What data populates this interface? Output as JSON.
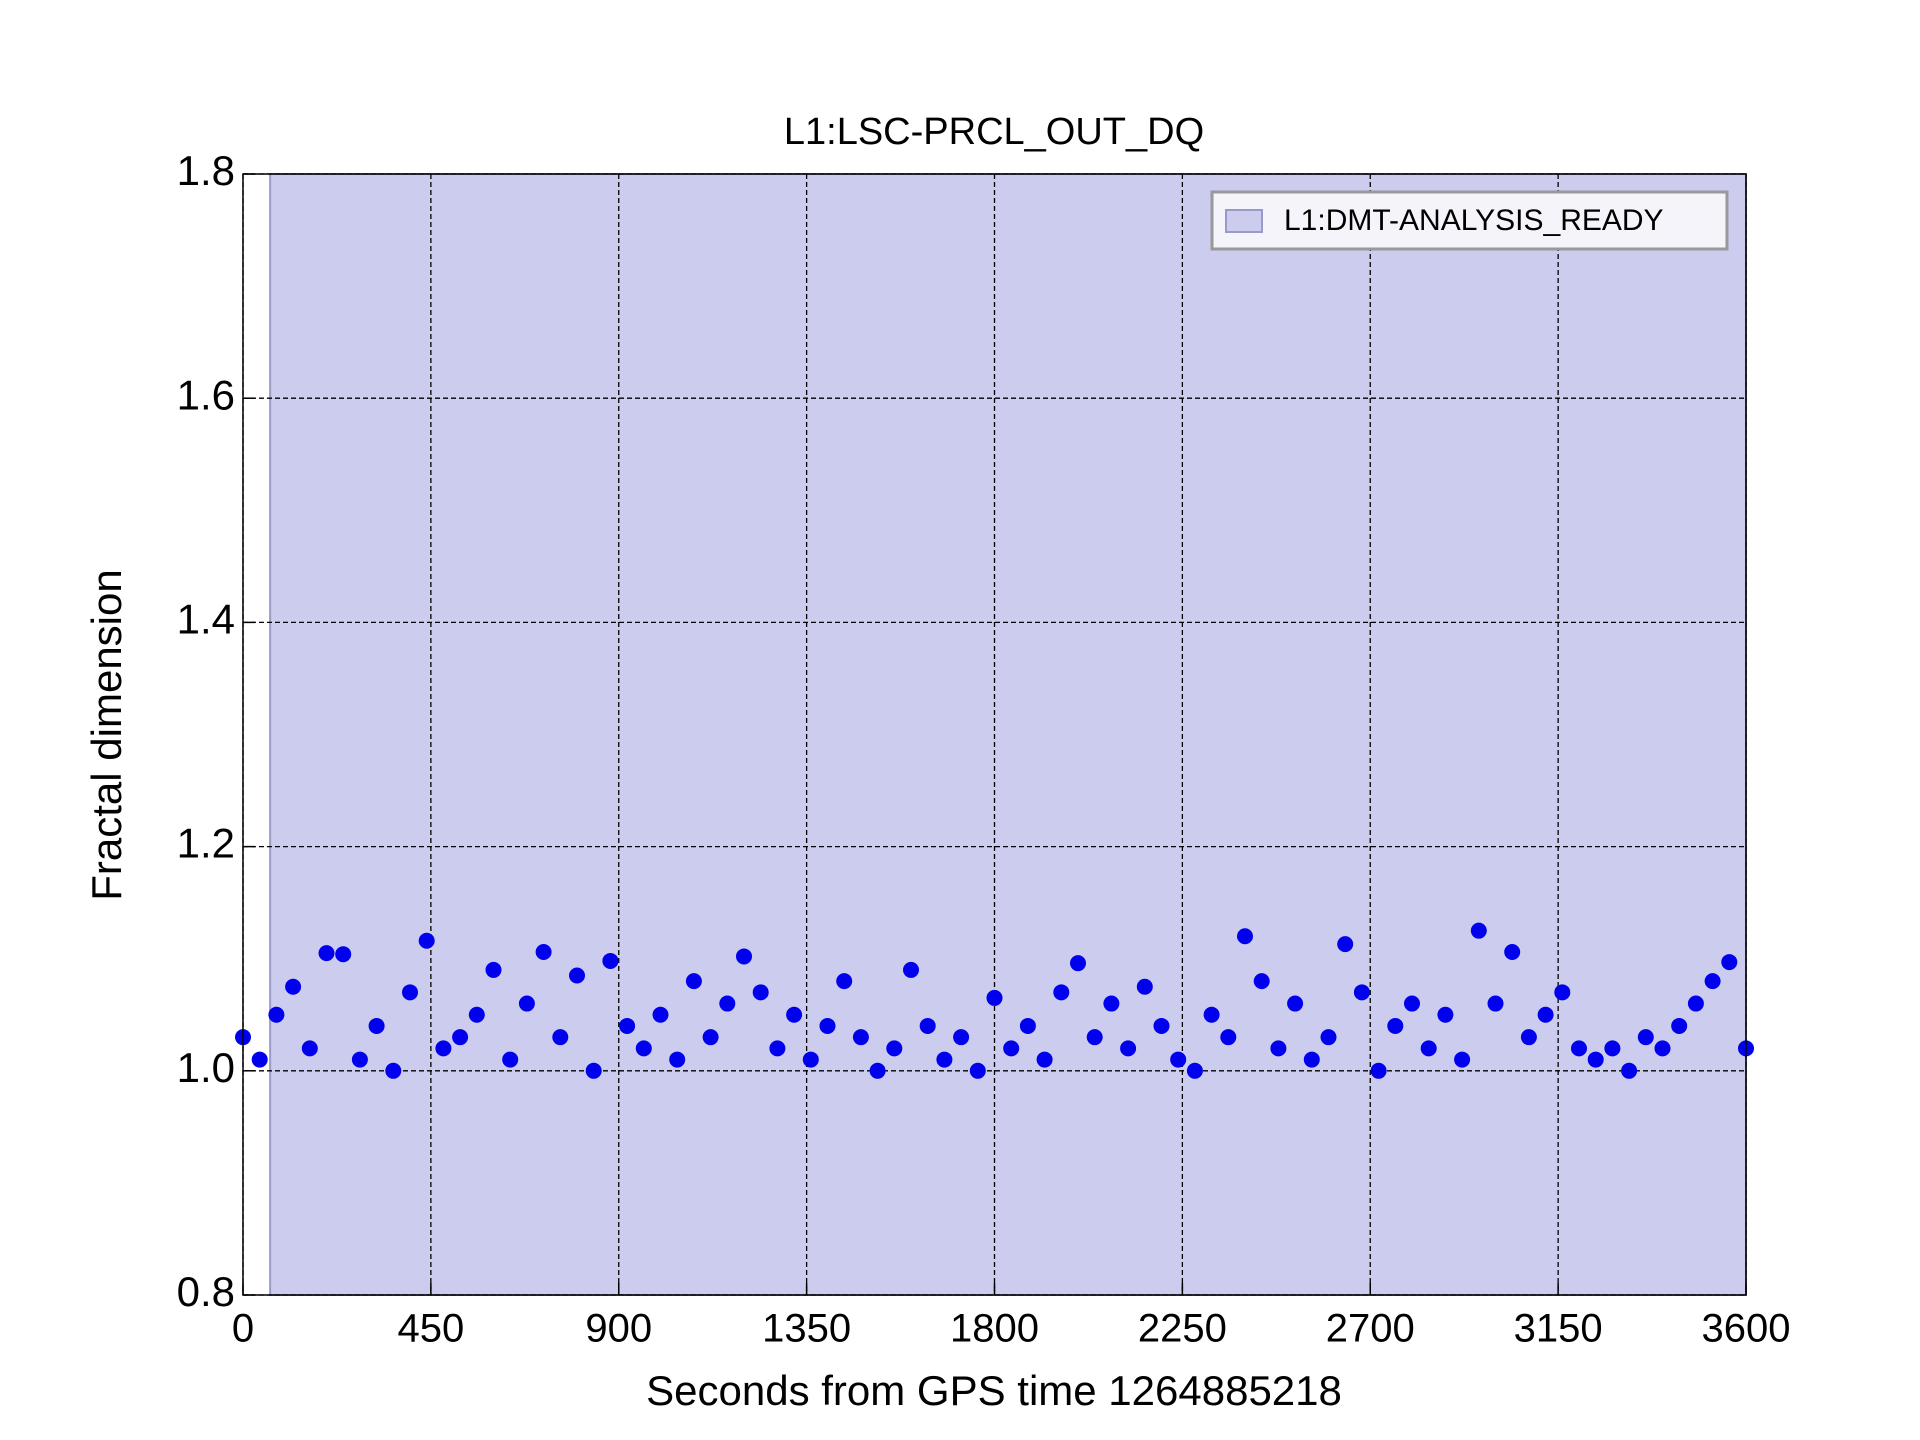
{
  "chart_data": {
    "type": "scatter",
    "title": "L1:LSC-PRCL_OUT_DQ",
    "xlabel": "Seconds from GPS time 1264885218",
    "ylabel": "Fractal dimension",
    "color": "#0000ee",
    "x": [
      0,
      40,
      80,
      120,
      160,
      200,
      240,
      280,
      320,
      360,
      400,
      440,
      480,
      520,
      560,
      600,
      640,
      680,
      720,
      760,
      800,
      840,
      880,
      920,
      960,
      1000,
      1040,
      1080,
      1120,
      1160,
      1200,
      1240,
      1280,
      1320,
      1360,
      1400,
      1440,
      1480,
      1520,
      1560,
      1600,
      1640,
      1680,
      1720,
      1760,
      1800,
      1840,
      1880,
      1920,
      1960,
      2000,
      2040,
      2080,
      2120,
      2160,
      2200,
      2240,
      2280,
      2320,
      2360,
      2400,
      2440,
      2480,
      2520,
      2560,
      2600,
      2640,
      2680,
      2720,
      2760,
      2800,
      2840,
      2880,
      2920,
      2960,
      3000,
      3040,
      3080,
      3120,
      3160,
      3200,
      3240,
      3280,
      3320,
      3360,
      3400,
      3440,
      3480,
      3520,
      3560,
      3600
    ],
    "values": [
      1.03,
      1.01,
      1.05,
      1.075,
      1.02,
      1.105,
      1.104,
      1.01,
      1.04,
      1.0,
      1.07,
      1.116,
      1.02,
      1.03,
      1.05,
      1.09,
      1.01,
      1.06,
      1.106,
      1.03,
      1.085,
      1.0,
      1.098,
      1.04,
      1.02,
      1.05,
      1.01,
      1.08,
      1.03,
      1.06,
      1.102,
      1.07,
      1.02,
      1.05,
      1.01,
      1.04,
      1.08,
      1.03,
      1.0,
      1.02,
      1.09,
      1.04,
      1.01,
      1.03,
      1.0,
      1.065,
      1.02,
      1.04,
      1.01,
      1.07,
      1.096,
      1.03,
      1.06,
      1.02,
      1.075,
      1.04,
      1.01,
      1.0,
      1.05,
      1.03,
      1.12,
      1.08,
      1.02,
      1.06,
      1.01,
      1.03,
      1.113,
      1.07,
      1.0,
      1.04,
      1.06,
      1.02,
      1.05,
      1.01,
      1.125,
      1.06,
      1.106,
      1.03,
      1.05,
      1.07,
      1.02,
      1.01,
      1.02,
      1.0,
      1.03,
      1.02,
      1.04,
      1.06,
      1.08,
      1.097,
      1.02
    ],
    "spans": [
      {
        "name": "L1:DMT-ANALYSIS_READY",
        "start": 65,
        "end": 3600,
        "color": "#ccccee",
        "edge": "#9999cc"
      }
    ],
    "xlim": [
      0,
      3600
    ],
    "xticks": [
      0,
      450,
      900,
      1350,
      1800,
      2250,
      2700,
      3150,
      3600
    ],
    "ylim": [
      0.8,
      1.8
    ],
    "yticks": [
      0.8,
      {
        "value": 1.0,
        "label": "1.0"
      },
      1.2,
      1.4,
      1.6,
      1.8
    ],
    "grid": true,
    "legend": "upper right"
  }
}
